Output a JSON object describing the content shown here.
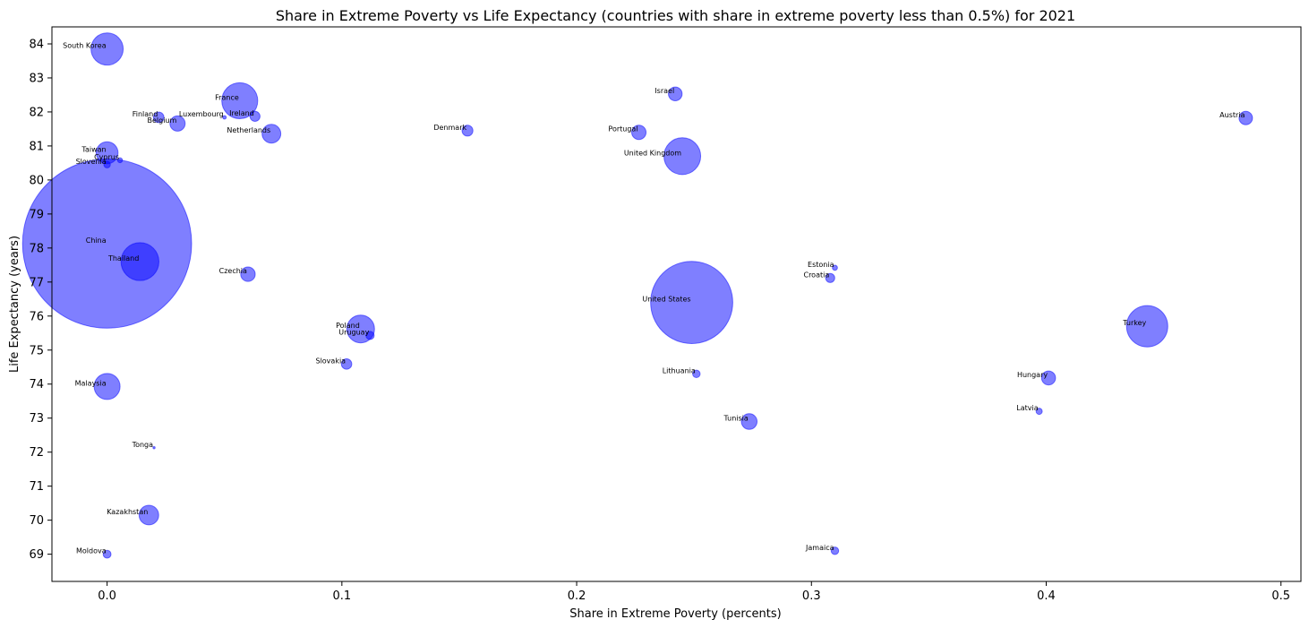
{
  "chart_data": {
    "type": "scatter",
    "title": "Share in Extreme Poverty vs Life Expectancy (countries with share in extreme poverty less than 0.5%) for 2021",
    "xlabel": "Share in Extreme Poverty (percents)",
    "ylabel": "Life Expectancy (years)",
    "xlim": [
      -0.0235,
      0.5085
    ],
    "ylim": [
      68.2,
      84.5
    ],
    "xticks": [
      0.0,
      0.1,
      0.2,
      0.3,
      0.4,
      0.5
    ],
    "xtick_labels": [
      "0.0",
      "0.1",
      "0.2",
      "0.3",
      "0.4",
      "0.5"
    ],
    "yticks": [
      69,
      70,
      71,
      72,
      73,
      74,
      75,
      76,
      77,
      78,
      79,
      80,
      81,
      82,
      83,
      84
    ],
    "ytick_labels": [
      "69",
      "70",
      "71",
      "72",
      "73",
      "74",
      "75",
      "76",
      "77",
      "78",
      "79",
      "80",
      "81",
      "82",
      "83",
      "84"
    ],
    "marker_color": "#0000ff",
    "marker_alpha": 0.5,
    "size_encoding": "population",
    "grid": false,
    "points": [
      {
        "label": "South Korea",
        "x": 0.0,
        "y": 83.85,
        "size": 51.7
      },
      {
        "label": "France",
        "x": 0.0565,
        "y": 82.33,
        "size": 64.5
      },
      {
        "label": "Finland",
        "x": 0.022,
        "y": 81.84,
        "size": 5.5
      },
      {
        "label": "Luxembourg",
        "x": 0.05,
        "y": 81.84,
        "size": 0.6
      },
      {
        "label": "Ireland",
        "x": 0.063,
        "y": 81.87,
        "size": 5.0
      },
      {
        "label": "Belgium",
        "x": 0.03,
        "y": 81.66,
        "size": 11.6
      },
      {
        "label": "Netherlands",
        "x": 0.07,
        "y": 81.36,
        "size": 17.5
      },
      {
        "label": "Israel",
        "x": 0.242,
        "y": 82.53,
        "size": 9.4
      },
      {
        "label": "Austria",
        "x": 0.485,
        "y": 81.82,
        "size": 9.0
      },
      {
        "label": "Denmark",
        "x": 0.1535,
        "y": 81.45,
        "size": 5.9
      },
      {
        "label": "Portugal",
        "x": 0.2265,
        "y": 81.4,
        "size": 10.3
      },
      {
        "label": "United Kingdom",
        "x": 0.245,
        "y": 80.7,
        "size": 67.3
      },
      {
        "label": "Taiwan",
        "x": 0.0,
        "y": 80.8,
        "size": 23.9
      },
      {
        "label": "Cyprus",
        "x": 0.0055,
        "y": 80.58,
        "size": 1.2
      },
      {
        "label": "Slovenia",
        "x": 0.0,
        "y": 80.45,
        "size": 2.1
      },
      {
        "label": "China",
        "x": 0.0,
        "y": 78.13,
        "size": 1425.9
      },
      {
        "label": "Thailand",
        "x": 0.014,
        "y": 77.6,
        "size": 71.6
      },
      {
        "label": "Czechia",
        "x": 0.06,
        "y": 77.23,
        "size": 10.5
      },
      {
        "label": "Estonia",
        "x": 0.31,
        "y": 77.42,
        "size": 1.3
      },
      {
        "label": "Croatia",
        "x": 0.308,
        "y": 77.12,
        "size": 4.1
      },
      {
        "label": "United States",
        "x": 0.249,
        "y": 76.4,
        "size": 336.5
      },
      {
        "label": "Turkey",
        "x": 0.443,
        "y": 75.7,
        "size": 84.8
      },
      {
        "label": "Poland",
        "x": 0.108,
        "y": 75.62,
        "size": 38.3
      },
      {
        "label": "Uruguay",
        "x": 0.112,
        "y": 75.43,
        "size": 3.4
      },
      {
        "label": "Slovakia",
        "x": 0.102,
        "y": 74.59,
        "size": 5.4
      },
      {
        "label": "Lithuania",
        "x": 0.251,
        "y": 74.3,
        "size": 2.8
      },
      {
        "label": "Hungary",
        "x": 0.401,
        "y": 74.18,
        "size": 9.7
      },
      {
        "label": "Malaysia",
        "x": 0.0,
        "y": 73.93,
        "size": 33.6
      },
      {
        "label": "Latvia",
        "x": 0.397,
        "y": 73.2,
        "size": 1.9
      },
      {
        "label": "Tunisia",
        "x": 0.2735,
        "y": 72.9,
        "size": 12.3
      },
      {
        "label": "Tonga",
        "x": 0.02,
        "y": 72.13,
        "size": 0.1
      },
      {
        "label": "Kazakhstan",
        "x": 0.0178,
        "y": 70.15,
        "size": 19.2
      },
      {
        "label": "Moldova",
        "x": 0.0,
        "y": 69.0,
        "size": 3.1
      },
      {
        "label": "Jamaica",
        "x": 0.31,
        "y": 69.1,
        "size": 2.8
      }
    ]
  }
}
